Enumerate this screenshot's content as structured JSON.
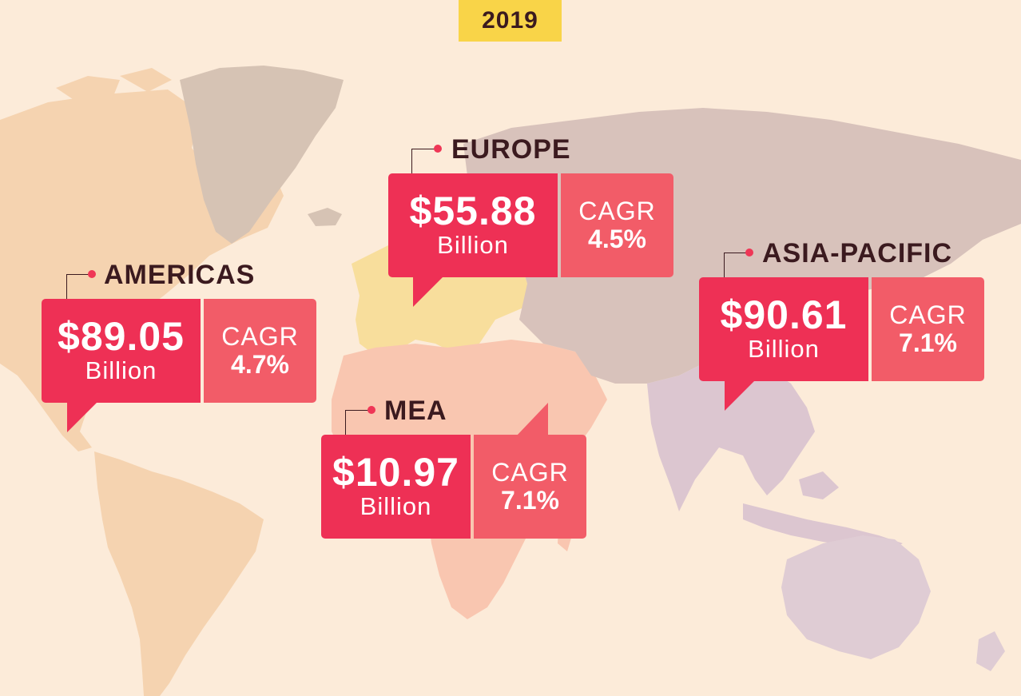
{
  "year": "2019",
  "colors": {
    "background": "#fcebd9",
    "value_box": "#ee3055",
    "cagr_box": "#f25c68",
    "year_badge": "#f9d448",
    "title_text": "#3b1a1f",
    "americas_land": "#f5d3b0",
    "europe_land": "#f8de9c",
    "mea_land": "#f9c6b0",
    "asia_land": "#dcc6c6",
    "greenland_land": "#d6c3b4",
    "oceania_land": "#dfccd4"
  },
  "regions": {
    "americas": {
      "name": "AMERICAS",
      "value": "$89.05",
      "unit": "Billion",
      "cagr_label": "CAGR",
      "cagr": "4.7%"
    },
    "europe": {
      "name": "EUROPE",
      "value": "$55.88",
      "unit": "Billion",
      "cagr_label": "CAGR",
      "cagr": "4.5%"
    },
    "mea": {
      "name": "MEA",
      "value": "$10.97",
      "unit": "Billion",
      "cagr_label": "CAGR",
      "cagr": "7.1%"
    },
    "asia_pacific": {
      "name": "ASIA-PACIFIC",
      "value": "$90.61",
      "unit": "Billion",
      "cagr_label": "CAGR",
      "cagr": "7.1%"
    }
  }
}
